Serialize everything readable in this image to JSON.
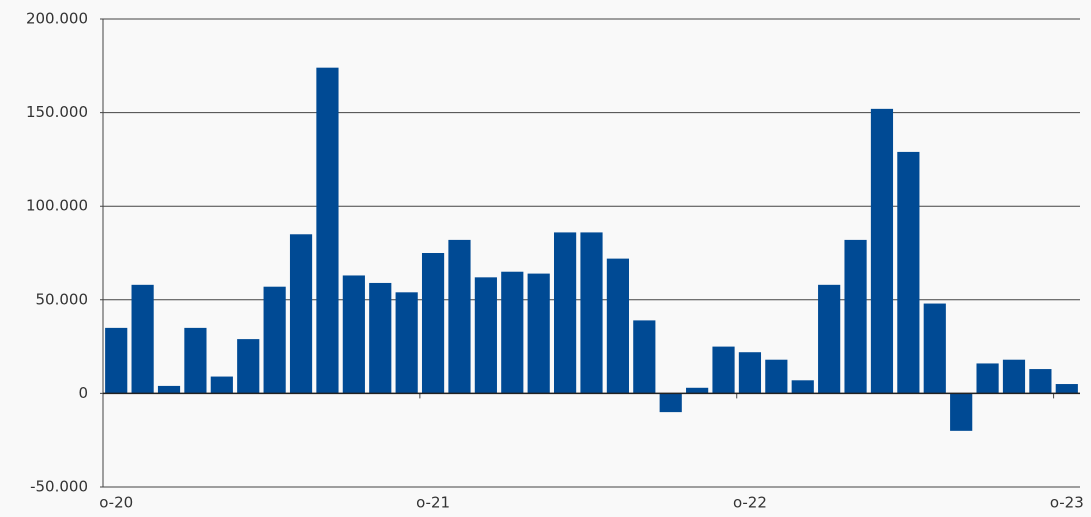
{
  "chart_data": {
    "type": "bar",
    "categories": [
      "o-20",
      null,
      null,
      null,
      null,
      null,
      null,
      null,
      null,
      null,
      null,
      null,
      "o-21",
      null,
      null,
      null,
      null,
      null,
      null,
      null,
      null,
      null,
      null,
      null,
      "o-22",
      null,
      null,
      null,
      null,
      null,
      null,
      null,
      null,
      null,
      null,
      null,
      "o-23"
    ],
    "values": [
      35000,
      58000,
      4000,
      35000,
      9000,
      29000,
      57000,
      85000,
      174000,
      63000,
      59000,
      54000,
      75000,
      82000,
      62000,
      65000,
      64000,
      86000,
      86000,
      72000,
      39000,
      -10000,
      3000,
      25000,
      22000,
      18000,
      7000,
      58000,
      82000,
      152000,
      129000,
      48000,
      -20000,
      16000,
      18000,
      13000,
      5000
    ],
    "color": "#004a94",
    "ylim": [
      -50000,
      200000
    ],
    "yticks": [
      {
        "value": -50000,
        "label": "-50.000"
      },
      0,
      {
        "value": 50000,
        "label": "50.000"
      },
      {
        "value": 100000,
        "label": "100.000"
      },
      {
        "value": 150000,
        "label": "150.000"
      },
      {
        "value": 200000,
        "label": "200.000"
      }
    ],
    "grid": true
  }
}
